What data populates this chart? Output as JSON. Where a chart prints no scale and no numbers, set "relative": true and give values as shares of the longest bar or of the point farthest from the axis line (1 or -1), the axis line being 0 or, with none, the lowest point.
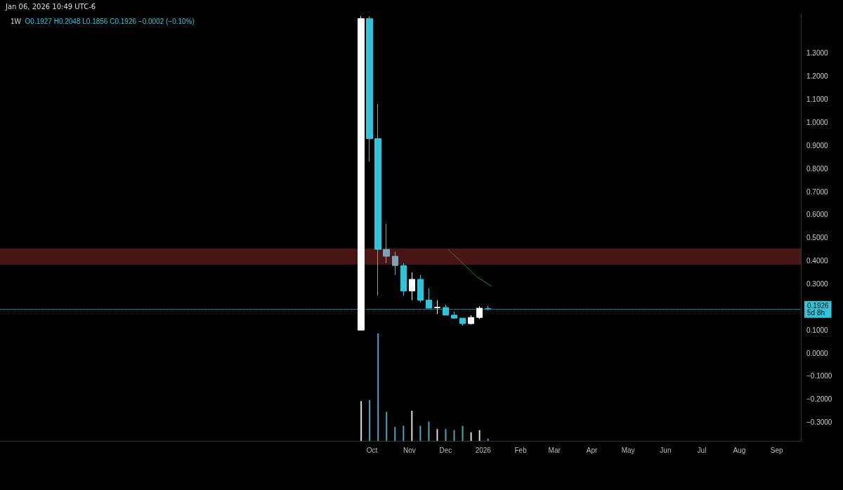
{
  "chart_data": [
    {
      "type": "candlestick",
      "title": "1W",
      "subtitle": "O0.1927 H0.2048 L0.1856 C0.1926 −0.0002 (−0.10%)",
      "annotations": [
        "Jan 06, 2026 10:49 UTC-6"
      ],
      "x": [
        "2025-09-22",
        "2025-09-29",
        "2025-10-06",
        "2025-10-13",
        "2025-10-20",
        "2025-10-27",
        "2025-11-03",
        "2025-11-10",
        "2025-11-17",
        "2025-11-24",
        "2025-12-01",
        "2025-12-08",
        "2025-12-15",
        "2025-12-22",
        "2025-12-29",
        "2026-01-05"
      ],
      "ohlc": [
        [
          0.1,
          1.46,
          0.1,
          1.45
        ],
        [
          1.45,
          1.46,
          0.83,
          0.93
        ],
        [
          0.93,
          1.08,
          0.25,
          0.45
        ],
        [
          0.45,
          0.56,
          0.39,
          0.42
        ],
        [
          0.42,
          0.44,
          0.34,
          0.38
        ],
        [
          0.38,
          0.39,
          0.25,
          0.27
        ],
        [
          0.27,
          0.35,
          0.23,
          0.32
        ],
        [
          0.32,
          0.34,
          0.22,
          0.23
        ],
        [
          0.23,
          0.28,
          0.195,
          0.195
        ],
        [
          0.197,
          0.23,
          0.17,
          0.199
        ],
        [
          0.198,
          0.21,
          0.165,
          0.165
        ],
        [
          0.165,
          0.18,
          0.149,
          0.152
        ],
        [
          0.152,
          0.152,
          0.119,
          0.128
        ],
        [
          0.128,
          0.165,
          0.125,
          0.155
        ],
        [
          0.155,
          0.204,
          0.149,
          0.195
        ],
        [
          0.1927,
          0.2048,
          0.1856,
          0.1926
        ]
      ],
      "colors": [
        "#ffffff",
        "#2fc4d9",
        "#2fc4d9",
        "#7fa3b5",
        "#7fa3b5",
        "#2fc4d9",
        "#ffffff",
        "#2fc4d9",
        "#2fc4d9",
        "#ffffff",
        "#2fc4d9",
        "#2fc4d9",
        "#2fc4d9",
        "#ffffff",
        "#ffffff",
        "#2fc4d9"
      ],
      "series": [
        {
          "type": "line",
          "color": "#2e7d32",
          "x": [
            "2025-12-03",
            "2025-12-15",
            "2025-12-27",
            "2026-01-08"
          ],
          "values": [
            0.45,
            0.39,
            0.33,
            0.29
          ]
        }
      ],
      "xlim": [
        "2024-11-27",
        "2026-09-21"
      ],
      "xticks": [
        {
          "value": "2025-10-01",
          "label": "Oct"
        },
        {
          "value": "2025-11-01",
          "label": "Nov"
        },
        {
          "value": "2025-12-01",
          "label": "Dec"
        },
        {
          "value": "2026-01-01",
          "label": "2026"
        },
        {
          "value": "2026-02-01",
          "label": "Feb"
        },
        {
          "value": "2026-03-01",
          "label": "Mar"
        },
        {
          "value": "2026-04-01",
          "label": "Apr"
        },
        {
          "value": "2026-05-01",
          "label": "May"
        },
        {
          "value": "2026-06-01",
          "label": "Jun"
        },
        {
          "value": "2026-07-01",
          "label": "Jul"
        },
        {
          "value": "2026-08-01",
          "label": "Aug"
        },
        {
          "value": "2026-09-01",
          "label": "Sep"
        }
      ],
      "ylim": [
        -0.38,
        1.47
      ],
      "yticks": [
        {
          "value": -0.3,
          "label": "−0.3000"
        },
        {
          "value": -0.2,
          "label": "−0.2000"
        },
        {
          "value": -0.1,
          "label": "−0.1000"
        },
        {
          "value": 0,
          "label": "0.0000"
        },
        {
          "value": 0.1,
          "label": "0.1000"
        },
        {
          "value": 0.3,
          "label": "0.3000"
        },
        {
          "value": 0.4,
          "label": "0.4000"
        },
        {
          "value": 0.5,
          "label": "0.5000"
        },
        {
          "value": 0.6,
          "label": "0.6000"
        },
        {
          "value": 0.7,
          "label": "0.7000"
        },
        {
          "value": 0.8,
          "label": "0.8000"
        },
        {
          "value": 0.9,
          "label": "0.9000"
        },
        {
          "value": 1.0,
          "label": "1.0000"
        },
        {
          "value": 1.1,
          "label": "1.1000"
        },
        {
          "value": 1.2,
          "label": "1.2000"
        },
        {
          "value": 1.3,
          "label": "1.3000"
        }
      ],
      "ref_lines": [
        {
          "axis": "y",
          "value": 0.1926,
          "label": "0.1926\n5d 8h",
          "color": "#2fc4d9",
          "line_style": "dotted"
        }
      ],
      "bands": [
        {
          "axis": "y",
          "from": 0.384,
          "to": 0.454,
          "color": "#4a1515"
        }
      ]
    },
    {
      "type": "bar",
      "relative": true,
      "x": [
        "2025-09-22",
        "2025-09-29",
        "2025-10-06",
        "2025-10-13",
        "2025-10-20",
        "2025-10-27",
        "2025-11-03",
        "2025-11-10",
        "2025-11-17",
        "2025-11-24",
        "2025-12-01",
        "2025-12-08",
        "2025-12-15",
        "2025-12-22",
        "2025-12-29",
        "2026-01-05"
      ],
      "values": [
        0.37,
        0.38,
        1,
        0.27,
        0.13,
        0.14,
        0.28,
        0.14,
        0.18,
        0.11,
        0.11,
        0.1,
        0.14,
        0.08,
        0.1,
        0.02
      ],
      "colors": [
        "#d9d9d9",
        "#4aa3b8",
        "#4aa3b8",
        "#4aa3b8",
        "#4aa3b8",
        "#4aa3b8",
        "#d9d9d9",
        "#4aa3b8",
        "#4aa3b8",
        "#d9d9d9",
        "#4aa3b8",
        "#4aa3b8",
        "#4aa3b8",
        "#d9d9d9",
        "#d9d9d9",
        "#4aa3b8"
      ],
      "xlim": [
        "2024-11-27",
        "2026-09-21"
      ]
    }
  ]
}
